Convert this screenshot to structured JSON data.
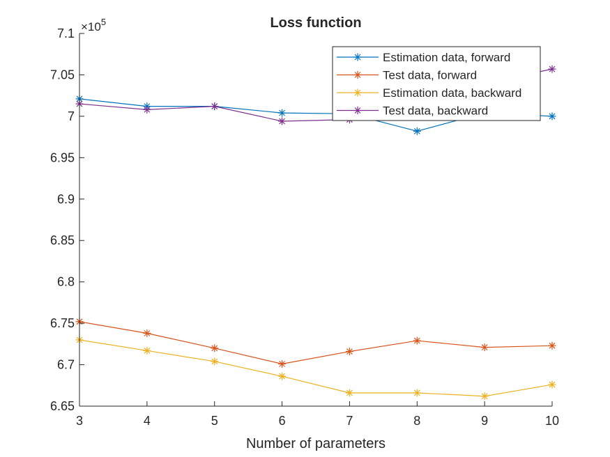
{
  "chart_data": {
    "type": "line",
    "title": "Loss function",
    "xlabel": "Number of parameters",
    "ylabel": "",
    "y_exponent_label": "×10",
    "y_exponent_power": "5",
    "y_scale_factor": 100000,
    "xlim": [
      3,
      10
    ],
    "ylim": [
      6.65,
      7.1
    ],
    "x": [
      3,
      4,
      5,
      6,
      7,
      8,
      9,
      10
    ],
    "x_ticks": [
      3,
      4,
      5,
      6,
      7,
      8,
      9,
      10
    ],
    "x_tick_labels": [
      "3",
      "4",
      "5",
      "6",
      "7",
      "8",
      "9",
      "10"
    ],
    "y_ticks": [
      6.65,
      6.7,
      6.75,
      6.8,
      6.85,
      6.9,
      6.95,
      7.0,
      7.05,
      7.1
    ],
    "y_tick_labels": [
      "6.65",
      "6.7",
      "6.75",
      "6.8",
      "6.85",
      "6.9",
      "6.95",
      "7",
      "7.05",
      "7.1"
    ],
    "grid": false,
    "legend_position": "top-right",
    "marker": "asterisk",
    "series": [
      {
        "name": "Estimation data, forward",
        "color": "#0072BD",
        "values": [
          7.021,
          7.012,
          7.012,
          7.004,
          7.003,
          6.982,
          7.004,
          7.0
        ]
      },
      {
        "name": "Test data, forward",
        "color": "#D95319",
        "values": [
          6.752,
          6.738,
          6.72,
          6.701,
          6.716,
          6.729,
          6.721,
          6.723
        ]
      },
      {
        "name": "Estimation data, backward",
        "color": "#EDB120",
        "values": [
          6.73,
          6.717,
          6.704,
          6.686,
          6.666,
          6.666,
          6.662,
          6.676
        ]
      },
      {
        "name": "Test data, backward",
        "color": "#7E2F8E",
        "values": [
          7.015,
          7.008,
          7.012,
          6.994,
          6.996,
          7.008,
          7.04,
          7.057
        ]
      }
    ]
  }
}
